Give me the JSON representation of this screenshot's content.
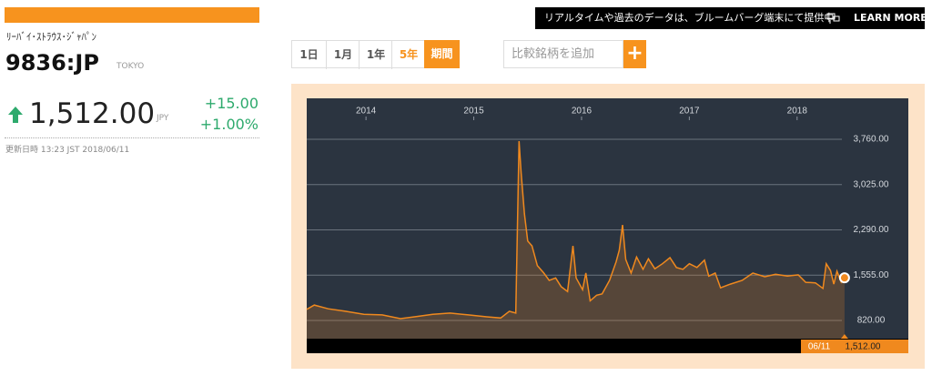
{
  "header": {
    "name": "ﾘｰﾊﾞｲ･ｽﾄﾗｳｽ･ｼﾞｬﾊﾟﾝ",
    "ticker": "9836:JP",
    "exchange": "TOKYO",
    "price": "1,512.00",
    "currency": "JPY",
    "change": "+15.00",
    "change_pct": "+1.00%",
    "updated": "更新日時 13:23 JST 2018/06/11"
  },
  "banner": {
    "text": "リアルタイムや過去のデータは、ブルームバーグ端末にて提供中",
    "link": "LEARN MORE"
  },
  "controls": {
    "ranges": [
      "1日",
      "1月",
      "1年",
      "5年",
      "期間"
    ],
    "compare_placeholder": "比較銘柄を追加",
    "add_button": "+"
  },
  "chart_data": {
    "type": "area",
    "series": [
      {
        "name": "9836:JP",
        "color": "#f0891e",
        "x": [
          2013.45,
          2013.52,
          2013.65,
          2013.81,
          2013.98,
          2014.15,
          2014.32,
          2014.45,
          2014.62,
          2014.78,
          2014.95,
          2015.12,
          2015.25,
          2015.33,
          2015.39,
          2015.42,
          2015.44,
          2015.47,
          2015.5,
          2015.54,
          2015.59,
          2015.65,
          2015.7,
          2015.76,
          2015.81,
          2015.87,
          2015.92,
          2015.95,
          2016.01,
          2016.04,
          2016.08,
          2016.14,
          2016.19,
          2016.26,
          2016.32,
          2016.35,
          2016.38,
          2016.41,
          2016.46,
          2016.51,
          2016.57,
          2016.62,
          2016.68,
          2016.75,
          2016.82,
          2016.88,
          2016.94,
          2017.0,
          2017.07,
          2017.14,
          2017.18,
          2017.24,
          2017.29,
          2017.38,
          2017.49,
          2017.59,
          2017.7,
          2017.8,
          2017.91,
          2018.01,
          2018.08,
          2018.17,
          2018.24,
          2018.27,
          2018.31,
          2018.34,
          2018.37,
          2018.41,
          2018.44
        ],
        "values": [
          1000,
          1070,
          1010,
          970,
          920,
          910,
          850,
          880,
          920,
          940,
          910,
          880,
          860,
          970,
          940,
          3730,
          3210,
          2550,
          2110,
          2030,
          1710,
          1590,
          1470,
          1510,
          1370,
          1290,
          2030,
          1510,
          1320,
          1590,
          1140,
          1230,
          1250,
          1470,
          1770,
          1960,
          2370,
          1810,
          1590,
          1850,
          1650,
          1820,
          1660,
          1740,
          1840,
          1680,
          1650,
          1740,
          1680,
          1800,
          1540,
          1590,
          1350,
          1410,
          1470,
          1590,
          1530,
          1570,
          1540,
          1560,
          1440,
          1430,
          1340,
          1740,
          1630,
          1410,
          1620,
          1440,
          1512
        ]
      }
    ],
    "xlim": [
      2013.45,
      2018.5
    ],
    "xticks": [
      2014,
      2015,
      2016,
      2017,
      2018
    ],
    "ylim": [
      525,
      4070
    ],
    "yticks": [
      {
        "value": 820,
        "label": "820.00"
      },
      {
        "value": 1555,
        "label": "1,555.00"
      },
      {
        "value": 2290,
        "label": "2,290.00"
      },
      {
        "value": 3025,
        "label": "3,025.00"
      },
      {
        "value": 3760,
        "label": "3,760.00"
      }
    ],
    "grid": true,
    "last_date": "06/11",
    "last_label": "1,512.00"
  }
}
